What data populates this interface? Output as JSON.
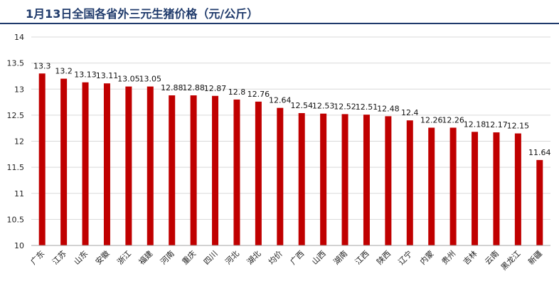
{
  "title": "1月13日全国各省外三元生猪价格（元/公斤）",
  "colors": {
    "bar": "#c00000",
    "title": "#1f3a6b",
    "grid": "#d9d9d9",
    "axis": "#a6a6a6"
  },
  "chart_data": {
    "type": "bar",
    "title": "1月13日全国各省外三元生猪价格（元/公斤）",
    "xlabel": "",
    "ylabel": "",
    "ylim": [
      10,
      14
    ],
    "yticks": [
      10,
      10.5,
      11,
      11.5,
      12,
      12.5,
      13,
      13.5,
      14
    ],
    "grid": true,
    "legend": "none",
    "categories": [
      "广东",
      "江苏",
      "山东",
      "安徽",
      "浙江",
      "福建",
      "河南",
      "重庆",
      "四川",
      "河北",
      "湖北",
      "均价",
      "广西",
      "山西",
      "湖南",
      "江西",
      "陕西",
      "辽宁",
      "内蒙",
      "贵州",
      "吉林",
      "云南",
      "黑龙江",
      "新疆"
    ],
    "values": [
      13.3,
      13.2,
      13.13,
      13.11,
      13.05,
      13.05,
      12.88,
      12.88,
      12.87,
      12.8,
      12.76,
      12.64,
      12.54,
      12.53,
      12.52,
      12.51,
      12.48,
      12.4,
      12.26,
      12.26,
      12.18,
      12.17,
      12.15,
      11.64
    ]
  }
}
